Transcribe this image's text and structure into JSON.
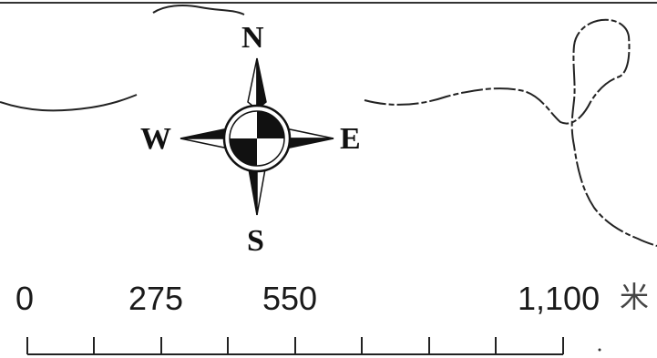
{
  "compass": {
    "north": "N",
    "south": "S",
    "east": "E",
    "west": "W",
    "icon": "north-arrow-icon"
  },
  "scale_bar": {
    "labels": [
      "0",
      "275",
      "550",
      "1,100"
    ],
    "unit": "米"
  },
  "colors": {
    "line": "#1a1a1a",
    "background": "#ffffff"
  }
}
